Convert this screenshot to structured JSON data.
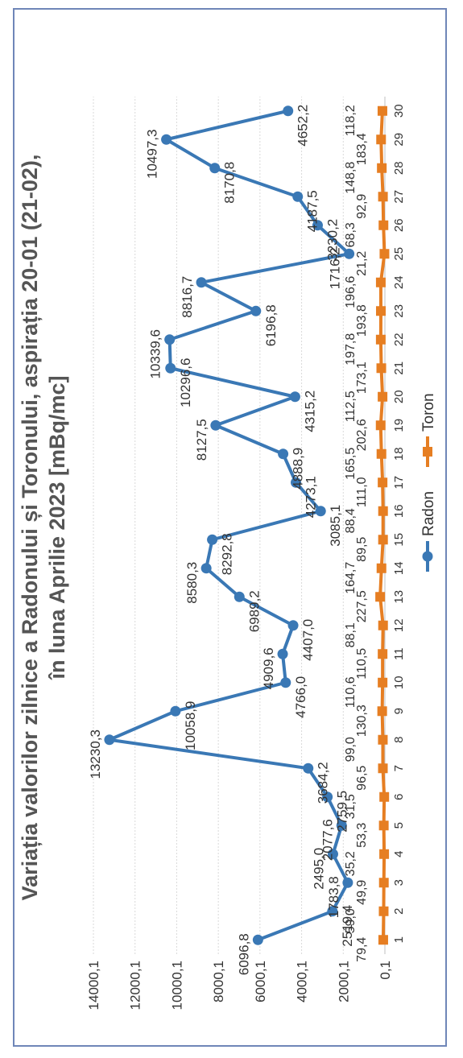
{
  "chart_data": {
    "type": "line",
    "title_line1": "Variația valorilor zilnice a Radonului și Toronului, aspirația 20-01 (21-02),",
    "title_line2": "în luna Aprilie 2023 [mBq/mc]",
    "categories": [
      "1",
      "2",
      "3",
      "4",
      "5",
      "6",
      "7",
      "8",
      "9",
      "10",
      "11",
      "12",
      "13",
      "14",
      "15",
      "16",
      "17",
      "18",
      "19",
      "20",
      "21",
      "22",
      "23",
      "24",
      "25",
      "26",
      "27",
      "28",
      "29",
      "30"
    ],
    "y_ticks": [
      "0,1",
      "2000,1",
      "4000,1",
      "6000,1",
      "8000,1",
      "10000,1",
      "12000,1",
      "14000,1"
    ],
    "ylim": [
      0.1,
      14000.1
    ],
    "grid": true,
    "legend_position": "bottom",
    "series": [
      {
        "name": "Radon",
        "color": "#3a78b5",
        "marker": "circle",
        "values": [
          6096.8,
          2519.4,
          1783.8,
          2495.0,
          2077.6,
          2759.5,
          3684.2,
          13230.3,
          10058.9,
          4766.0,
          4909.6,
          4407.0,
          6989.2,
          8580.3,
          8292.8,
          3085.1,
          4273.1,
          4888.9,
          8127.5,
          4315.2,
          10296.6,
          10339.6,
          6196.8,
          8816.7,
          1716.2,
          3230.2,
          4187.5,
          8170.8,
          10497.3,
          4652.2
        ],
        "labels": [
          "6096,8",
          "2519,4",
          "1783,8",
          "2495,0",
          "2077,6",
          "2759,5",
          "3684,2",
          "13230,3",
          "10058,9",
          "4766,0",
          "4909,6",
          "4407,0",
          "6989,2",
          "8580,3",
          "8292,8",
          "3085,1",
          "4273,1",
          "4888,9",
          "8127,5",
          "4315,2",
          "10296,6",
          "10339,6",
          "6196,8",
          "8816,7",
          "1716,2",
          "3230,2",
          "4187,5",
          "8170,8",
          "10497,3",
          "4652,2"
        ]
      },
      {
        "name": "Toron",
        "color": "#e67e22",
        "marker": "square",
        "values": [
          79.4,
          59.0,
          49.9,
          35.2,
          53.3,
          31.5,
          96.5,
          99.0,
          130.3,
          110.6,
          110.5,
          88.1,
          227.5,
          164.7,
          89.5,
          88.4,
          111.0,
          165.5,
          202.6,
          112.5,
          173.1,
          197.8,
          193.8,
          196.6,
          21.2,
          68.3,
          92.9,
          148.8,
          183.4,
          118.2
        ],
        "labels": [
          "79,4",
          "59,0",
          "49,9",
          "35,2",
          "53,3",
          "31,5",
          "96,5",
          "99,0",
          "130,3",
          "110,6",
          "110,5",
          "88,1",
          "227,5",
          "164,7",
          "89,5",
          "88,4",
          "111,0",
          "165,5",
          "202,6",
          "112,5",
          "173,1",
          "197,8",
          "193,8",
          "196,6",
          "21,2",
          "68,3",
          "92,9",
          "148,8",
          "183,4",
          "118,2"
        ]
      }
    ]
  }
}
